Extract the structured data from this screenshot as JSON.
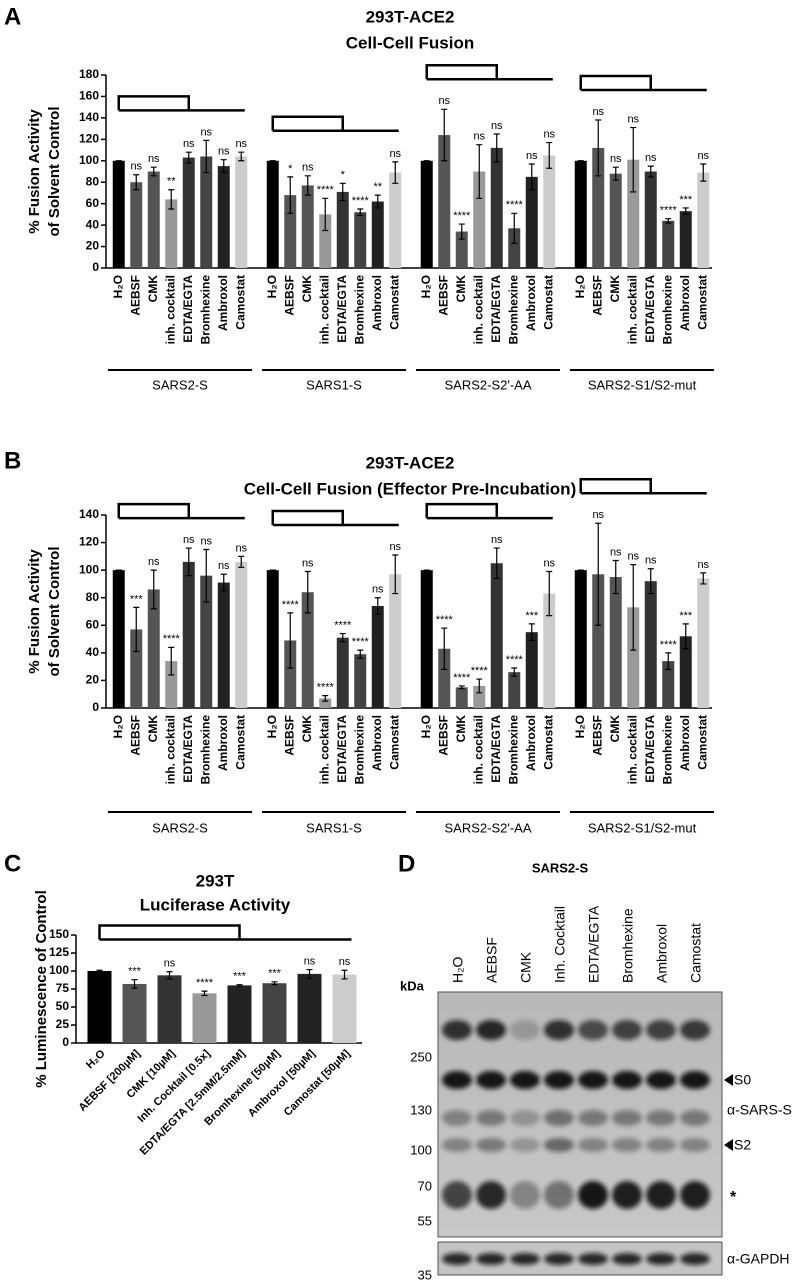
{
  "chart_data": [
    {
      "panel_label": "A",
      "type": "bar",
      "title": "293T-ACE2",
      "subtitle": "Cell-Cell Fusion",
      "y_label": [
        "% Fusion Activity",
        "of Solvent Control"
      ],
      "ylim": [
        0,
        180
      ],
      "yticks": [
        0,
        20,
        40,
        60,
        80,
        100,
        120,
        140,
        160,
        180
      ],
      "categories": [
        "H₂O",
        "AEBSF",
        "CMK",
        "inh. cocktail",
        "EDTA/EGTA",
        "Bromhexine",
        "Ambroxol",
        "Camostat"
      ],
      "colors": [
        "#000000",
        "#555555",
        "#555555",
        "#999999",
        "#333333",
        "#444444",
        "#222222",
        "#cccccc"
      ],
      "groups": [
        {
          "name": "SARS2-S",
          "values": [
            100,
            80,
            90,
            64,
            103,
            104,
            95,
            104
          ],
          "errors": [
            0,
            7,
            4,
            9,
            5,
            15,
            6,
            4
          ],
          "significance": [
            null,
            "ns",
            "ns",
            "**",
            "ns",
            "ns",
            "ns",
            "ns"
          ]
        },
        {
          "name": "SARS1-S",
          "values": [
            100,
            68,
            77,
            50,
            71,
            52,
            62,
            89
          ],
          "errors": [
            0,
            17,
            9,
            15,
            8,
            3,
            6,
            10
          ],
          "significance": [
            null,
            "*",
            "ns",
            "****",
            "*",
            "****",
            "**",
            "ns"
          ]
        },
        {
          "name": "SARS2-S2'-AA",
          "values": [
            100,
            124,
            34,
            90,
            112,
            37,
            85,
            105
          ],
          "errors": [
            0,
            24,
            7,
            25,
            13,
            14,
            12,
            12
          ],
          "significance": [
            null,
            "ns",
            "****",
            "ns",
            "ns",
            "****",
            "ns",
            "ns"
          ]
        },
        {
          "name": "SARS2-S1/S2-mut",
          "values": [
            100,
            112,
            88,
            101,
            90,
            44,
            53,
            89
          ],
          "errors": [
            0,
            26,
            6,
            30,
            5,
            2,
            3,
            8
          ],
          "significance": [
            null,
            "ns",
            "ns",
            "ns",
            "ns",
            "****",
            "***",
            "ns"
          ]
        }
      ]
    },
    {
      "panel_label": "B",
      "type": "bar",
      "title": "293T-ACE2",
      "subtitle": "Cell-Cell Fusion (Effector Pre-Incubation)",
      "y_label": [
        "% Fusion Activity",
        "of Solvent Control"
      ],
      "ylim": [
        0,
        140
      ],
      "yticks": [
        0,
        20,
        40,
        60,
        80,
        100,
        120,
        140
      ],
      "categories": [
        "H₂O",
        "AEBSF",
        "CMK",
        "inh. cocktail",
        "EDTA/EGTA",
        "Bromhexine",
        "Ambroxol",
        "Camostat"
      ],
      "colors": [
        "#000000",
        "#555555",
        "#555555",
        "#999999",
        "#333333",
        "#444444",
        "#222222",
        "#cccccc"
      ],
      "groups": [
        {
          "name": "SARS2-S",
          "values": [
            100,
            57,
            86,
            34,
            106,
            96,
            91,
            106
          ],
          "errors": [
            0,
            16,
            14,
            10,
            10,
            19,
            6,
            4
          ],
          "significance": [
            null,
            "***",
            "ns",
            "****",
            "ns",
            "ns",
            "ns",
            "ns"
          ]
        },
        {
          "name": "SARS1-S",
          "values": [
            100,
            49,
            84,
            7,
            51,
            39,
            74,
            97
          ],
          "errors": [
            0,
            20,
            15,
            2,
            3,
            3,
            6,
            14
          ],
          "significance": [
            null,
            "****",
            "ns",
            "****",
            "****",
            "****",
            "ns",
            "ns"
          ]
        },
        {
          "name": "SARS2-S2'-AA",
          "values": [
            100,
            43,
            15,
            16,
            105,
            26,
            55,
            83
          ],
          "errors": [
            0,
            15,
            1,
            5,
            11,
            3,
            6,
            16
          ],
          "significance": [
            null,
            "****",
            "****",
            "****",
            "ns",
            "****",
            "***",
            "ns"
          ]
        },
        {
          "name": "SARS2-S1/S2-mut",
          "values": [
            100,
            97,
            95,
            73,
            92,
            34,
            52,
            94
          ],
          "errors": [
            0,
            37,
            12,
            31,
            9,
            6,
            9,
            4
          ],
          "significance": [
            null,
            "ns",
            "ns",
            "ns",
            "ns",
            "****",
            "***",
            "ns"
          ]
        }
      ]
    },
    {
      "panel_label": "C",
      "type": "bar",
      "title": "293T",
      "subtitle": "Luciferase Activity",
      "y_label": [
        "% Luminescence of Control"
      ],
      "ylim": [
        0,
        150
      ],
      "yticks": [
        0,
        25,
        50,
        75,
        100,
        125,
        150
      ],
      "categories": [
        "H₂O",
        "AEBSF [200µM]",
        "CMK [10µM]",
        "Inh. Cocktail [0.5x]",
        "EDTA/EGTA [2.5mM/2.5mM]",
        "Bromhexine [50µM]",
        "Ambroxol [50µM]",
        "Camostat [50µM]"
      ],
      "colors": [
        "#000000",
        "#555555",
        "#333333",
        "#999999",
        "#222222",
        "#444444",
        "#222222",
        "#cccccc"
      ],
      "values": [
        100,
        82,
        94,
        69,
        80,
        83,
        96,
        95
      ],
      "errors": [
        1,
        6,
        5,
        3,
        1,
        2,
        6,
        6
      ],
      "significance": [
        null,
        "***",
        "ns",
        "****",
        "***",
        "***",
        "ns",
        "ns"
      ]
    }
  ],
  "blot": {
    "panel_label": "D",
    "title": "SARS2-S",
    "unit": "kDa",
    "lanes": [
      "H₂O",
      "AEBSF",
      "CMK",
      "Inh. Cocktail",
      "EDTA/EGTA",
      "Bromhexine",
      "Ambroxol",
      "Camostat"
    ],
    "markers": [
      "250",
      "130",
      "100",
      "70",
      "55",
      "35"
    ],
    "s0": "S0",
    "antibody": "α-SARS-S",
    "s2": "S2",
    "nonspecific": "*",
    "loading": "α-GAPDH"
  }
}
